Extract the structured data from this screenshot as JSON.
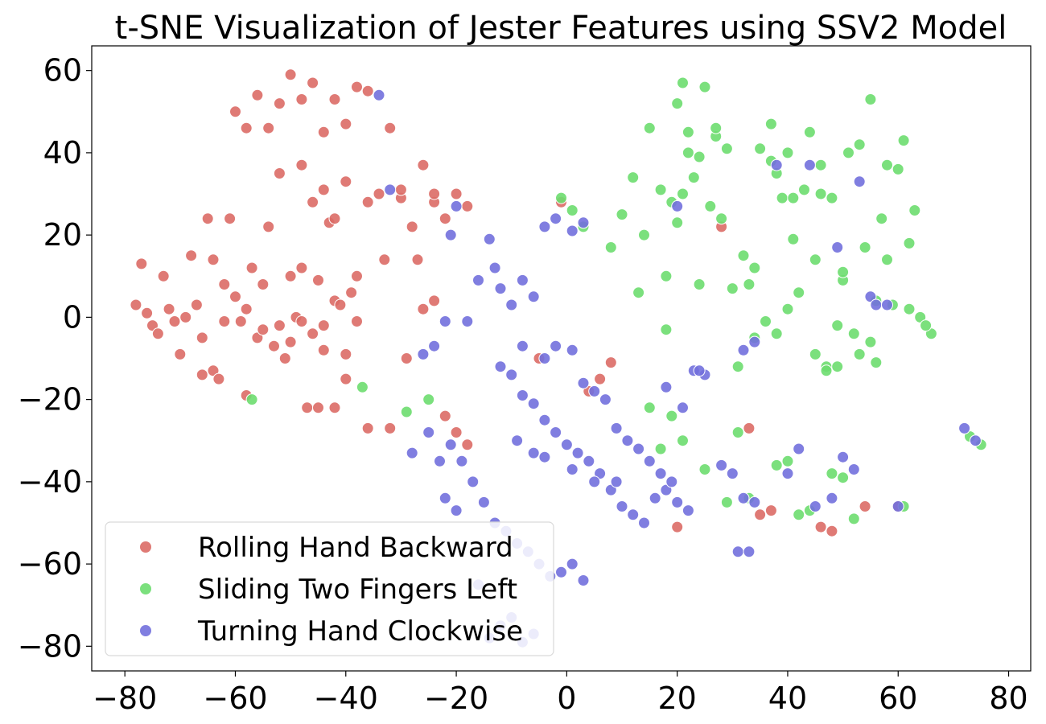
{
  "chart_data": {
    "type": "scatter",
    "title": "t-SNE Visualization of Jester Features using SSV2 Model",
    "xlabel": "",
    "ylabel": "",
    "xlim": [
      -86,
      84
    ],
    "ylim": [
      -86,
      66
    ],
    "xticks": [
      -80,
      -60,
      -40,
      -20,
      0,
      20,
      40,
      60,
      80
    ],
    "yticks": [
      60,
      40,
      20,
      0,
      -20,
      -40,
      -60,
      -80
    ],
    "xtick_labels": [
      "−80",
      "−60",
      "−40",
      "−20",
      "0",
      "20",
      "40",
      "60",
      "80"
    ],
    "ytick_labels": [
      "60",
      "40",
      "20",
      "0",
      "−20",
      "−40",
      "−60",
      "−80"
    ],
    "grid": false,
    "legend_position": "lower-left",
    "series": [
      {
        "name": "Rolling Hand Backward",
        "color": "#db6b66",
        "points": [
          [
            -77,
            13
          ],
          [
            -78,
            3
          ],
          [
            -76,
            1
          ],
          [
            -75,
            -2
          ],
          [
            -74,
            -4
          ],
          [
            -73,
            10
          ],
          [
            -72,
            2
          ],
          [
            -71,
            -1
          ],
          [
            -70,
            -9
          ],
          [
            -69,
            0
          ],
          [
            -68,
            15
          ],
          [
            -67,
            3
          ],
          [
            -66,
            -14
          ],
          [
            -65,
            24
          ],
          [
            -64,
            -13
          ],
          [
            -63,
            -15
          ],
          [
            -62,
            8
          ],
          [
            -61,
            24
          ],
          [
            -60,
            5
          ],
          [
            -59,
            -1
          ],
          [
            -58,
            2
          ],
          [
            -57,
            12
          ],
          [
            -56,
            -5
          ],
          [
            -55,
            8
          ],
          [
            -54,
            22
          ],
          [
            -53,
            -7
          ],
          [
            -52,
            35
          ],
          [
            -51,
            -10
          ],
          [
            -50,
            10
          ],
          [
            -49,
            0
          ],
          [
            -48,
            12
          ],
          [
            -47,
            -22
          ],
          [
            -46,
            -4
          ],
          [
            -45,
            9
          ],
          [
            -44,
            -8
          ],
          [
            -43,
            23
          ],
          [
            -42,
            4
          ],
          [
            -41,
            3
          ],
          [
            -40,
            -9
          ],
          [
            -39,
            6
          ],
          [
            -38,
            10
          ],
          [
            -66,
            -5
          ],
          [
            -64,
            14
          ],
          [
            -62,
            -1
          ],
          [
            -60,
            50
          ],
          [
            -58,
            46
          ],
          [
            -56,
            54
          ],
          [
            -54,
            46
          ],
          [
            -52,
            52
          ],
          [
            -50,
            59
          ],
          [
            -48,
            53
          ],
          [
            -46,
            57
          ],
          [
            -44,
            45
          ],
          [
            -42,
            53
          ],
          [
            -40,
            47
          ],
          [
            -38,
            56
          ],
          [
            -36,
            55
          ],
          [
            -34,
            30
          ],
          [
            -32,
            46
          ],
          [
            -30,
            29
          ],
          [
            -28,
            22
          ],
          [
            -26,
            37
          ],
          [
            -24,
            28
          ],
          [
            -22,
            24
          ],
          [
            -20,
            30
          ],
          [
            -18,
            27
          ],
          [
            -36,
            -27
          ],
          [
            -32,
            -27
          ],
          [
            -29,
            -10
          ],
          [
            -26,
            2
          ],
          [
            -24,
            4
          ],
          [
            -22,
            -24
          ],
          [
            -20,
            -28
          ],
          [
            -18,
            -31
          ],
          [
            -5,
            -10
          ],
          [
            4,
            -18
          ],
          [
            6,
            -15
          ],
          [
            8,
            -11
          ],
          [
            28,
            22
          ],
          [
            33,
            -27
          ],
          [
            35,
            -48
          ],
          [
            37,
            -47
          ],
          [
            46,
            -51
          ],
          [
            48,
            -52
          ],
          [
            54,
            -46
          ],
          [
            60,
            -46
          ],
          [
            20,
            -51
          ],
          [
            -1,
            28
          ],
          [
            -48,
            -1
          ],
          [
            -52,
            -2
          ],
          [
            -50,
            -6
          ],
          [
            -44,
            -2
          ],
          [
            -40,
            -15
          ],
          [
            -38,
            -1
          ],
          [
            -58,
            -19
          ],
          [
            -45,
            -22
          ],
          [
            -42,
            -22
          ],
          [
            -55,
            -3
          ],
          [
            -30,
            31
          ],
          [
            -33,
            14
          ],
          [
            -27,
            14
          ],
          [
            -24,
            30
          ],
          [
            -46,
            28
          ],
          [
            -44,
            31
          ],
          [
            -42,
            24
          ],
          [
            -48,
            37
          ],
          [
            -40,
            33
          ],
          [
            -36,
            28
          ]
        ]
      },
      {
        "name": "Sliding Two Fingers Left",
        "color": "#6ddd6f",
        "points": [
          [
            -1,
            29
          ],
          [
            1,
            26
          ],
          [
            3,
            22
          ],
          [
            8,
            17
          ],
          [
            10,
            25
          ],
          [
            12,
            34
          ],
          [
            14,
            20
          ],
          [
            15,
            46
          ],
          [
            17,
            31
          ],
          [
            18,
            10
          ],
          [
            19,
            28
          ],
          [
            20,
            52
          ],
          [
            21,
            57
          ],
          [
            22,
            45
          ],
          [
            23,
            34
          ],
          [
            24,
            8
          ],
          [
            25,
            56
          ],
          [
            26,
            27
          ],
          [
            27,
            44
          ],
          [
            28,
            24
          ],
          [
            29,
            41
          ],
          [
            30,
            7
          ],
          [
            31,
            -12
          ],
          [
            32,
            15
          ],
          [
            33,
            8
          ],
          [
            34,
            -5
          ],
          [
            35,
            41
          ],
          [
            36,
            -1
          ],
          [
            37,
            47
          ],
          [
            38,
            35
          ],
          [
            39,
            29
          ],
          [
            40,
            40
          ],
          [
            41,
            19
          ],
          [
            42,
            6
          ],
          [
            43,
            31
          ],
          [
            44,
            45
          ],
          [
            45,
            14
          ],
          [
            46,
            37
          ],
          [
            47,
            -12
          ],
          [
            48,
            29
          ],
          [
            49,
            -2
          ],
          [
            50,
            9
          ],
          [
            51,
            40
          ],
          [
            52,
            -4
          ],
          [
            53,
            42
          ],
          [
            54,
            17
          ],
          [
            55,
            53
          ],
          [
            56,
            -11
          ],
          [
            57,
            24
          ],
          [
            58,
            37
          ],
          [
            59,
            3
          ],
          [
            60,
            36
          ],
          [
            61,
            43
          ],
          [
            62,
            18
          ],
          [
            63,
            26
          ],
          [
            64,
            0
          ],
          [
            66,
            -4
          ],
          [
            13,
            6
          ],
          [
            15,
            -22
          ],
          [
            17,
            -32
          ],
          [
            19,
            -24
          ],
          [
            21,
            -30
          ],
          [
            25,
            -37
          ],
          [
            29,
            -45
          ],
          [
            31,
            -28
          ],
          [
            33,
            -44
          ],
          [
            38,
            -36
          ],
          [
            40,
            -35
          ],
          [
            42,
            -48
          ],
          [
            44,
            -47
          ],
          [
            48,
            -38
          ],
          [
            50,
            -39
          ],
          [
            52,
            -49
          ],
          [
            61,
            -46
          ],
          [
            73,
            -29
          ],
          [
            75,
            -31
          ],
          [
            -29,
            -23
          ],
          [
            -25,
            -20
          ],
          [
            -37,
            -17
          ],
          [
            -57,
            -20
          ],
          [
            50,
            11
          ],
          [
            47,
            -13
          ],
          [
            45,
            -9
          ],
          [
            49,
            -12
          ],
          [
            56,
            4
          ],
          [
            58,
            14
          ],
          [
            21,
            30
          ],
          [
            22,
            40
          ],
          [
            24,
            39
          ],
          [
            27,
            46
          ],
          [
            20,
            23
          ],
          [
            18,
            -3
          ],
          [
            40,
            2
          ],
          [
            38,
            -4
          ],
          [
            34,
            12
          ],
          [
            46,
            30
          ],
          [
            55,
            -6
          ],
          [
            53,
            -9
          ],
          [
            62,
            2
          ],
          [
            65,
            -2
          ],
          [
            37,
            38
          ],
          [
            41,
            29
          ]
        ]
      },
      {
        "name": "Turning Hand Clockwise",
        "color": "#7270dd",
        "points": [
          [
            -34,
            54
          ],
          [
            -32,
            31
          ],
          [
            -20,
            27
          ],
          [
            -21,
            20
          ],
          [
            -14,
            19
          ],
          [
            -13,
            12
          ],
          [
            -12,
            7
          ],
          [
            -10,
            3
          ],
          [
            -8,
            9
          ],
          [
            -6,
            5
          ],
          [
            -16,
            9
          ],
          [
            -18,
            -1
          ],
          [
            -22,
            -1
          ],
          [
            -24,
            -7
          ],
          [
            -26,
            -9
          ],
          [
            -28,
            -33
          ],
          [
            -25,
            -28
          ],
          [
            -23,
            -35
          ],
          [
            -21,
            -31
          ],
          [
            -19,
            -35
          ],
          [
            -17,
            -40
          ],
          [
            -15,
            -45
          ],
          [
            -20,
            -47
          ],
          [
            -22,
            -44
          ],
          [
            -13,
            -50
          ],
          [
            -11,
            -52
          ],
          [
            -9,
            -55
          ],
          [
            -7,
            -57
          ],
          [
            -5,
            -60
          ],
          [
            -3,
            -63
          ],
          [
            -1,
            -62
          ],
          [
            1,
            -60
          ],
          [
            3,
            -64
          ],
          [
            -12,
            -12
          ],
          [
            -10,
            -14
          ],
          [
            -8,
            -19
          ],
          [
            -6,
            -21
          ],
          [
            -4,
            -25
          ],
          [
            -2,
            -28
          ],
          [
            0,
            -31
          ],
          [
            2,
            -33
          ],
          [
            4,
            -35
          ],
          [
            6,
            -38
          ],
          [
            8,
            -42
          ],
          [
            10,
            -46
          ],
          [
            12,
            -48
          ],
          [
            14,
            -50
          ],
          [
            16,
            -44
          ],
          [
            18,
            -42
          ],
          [
            20,
            -45
          ],
          [
            22,
            -47
          ],
          [
            -8,
            -7
          ],
          [
            -4,
            -10
          ],
          [
            -2,
            -7
          ],
          [
            1,
            -8
          ],
          [
            3,
            -16
          ],
          [
            5,
            -18
          ],
          [
            7,
            -20
          ],
          [
            9,
            -27
          ],
          [
            11,
            -30
          ],
          [
            13,
            -32
          ],
          [
            15,
            -35
          ],
          [
            17,
            -38
          ],
          [
            19,
            -40
          ],
          [
            21,
            -22
          ],
          [
            23,
            -13
          ],
          [
            25,
            -14
          ],
          [
            28,
            -36
          ],
          [
            30,
            -38
          ],
          [
            32,
            -44
          ],
          [
            34,
            -45
          ],
          [
            -16,
            -65
          ],
          [
            -14,
            -78
          ],
          [
            -12,
            -75
          ],
          [
            -10,
            -73
          ],
          [
            -8,
            -79
          ],
          [
            -6,
            -77
          ],
          [
            1,
            21
          ],
          [
            3,
            23
          ],
          [
            -4,
            22
          ],
          [
            -2,
            24
          ],
          [
            20,
            27
          ],
          [
            32,
            -8
          ],
          [
            34,
            -6
          ],
          [
            38,
            37
          ],
          [
            40,
            -38
          ],
          [
            42,
            -32
          ],
          [
            45,
            -46
          ],
          [
            48,
            -44
          ],
          [
            50,
            -34
          ],
          [
            52,
            -37
          ],
          [
            53,
            33
          ],
          [
            55,
            5
          ],
          [
            56,
            3
          ],
          [
            58,
            3
          ],
          [
            60,
            -46
          ],
          [
            72,
            -27
          ],
          [
            74,
            -30
          ],
          [
            49,
            17
          ],
          [
            44,
            37
          ],
          [
            18,
            -17
          ],
          [
            24,
            -13
          ],
          [
            31,
            -57
          ],
          [
            33,
            -57
          ],
          [
            -9,
            -30
          ],
          [
            -6,
            -33
          ],
          [
            -4,
            -34
          ],
          [
            1,
            -37
          ],
          [
            5,
            -40
          ],
          [
            9,
            -40
          ]
        ]
      }
    ]
  }
}
